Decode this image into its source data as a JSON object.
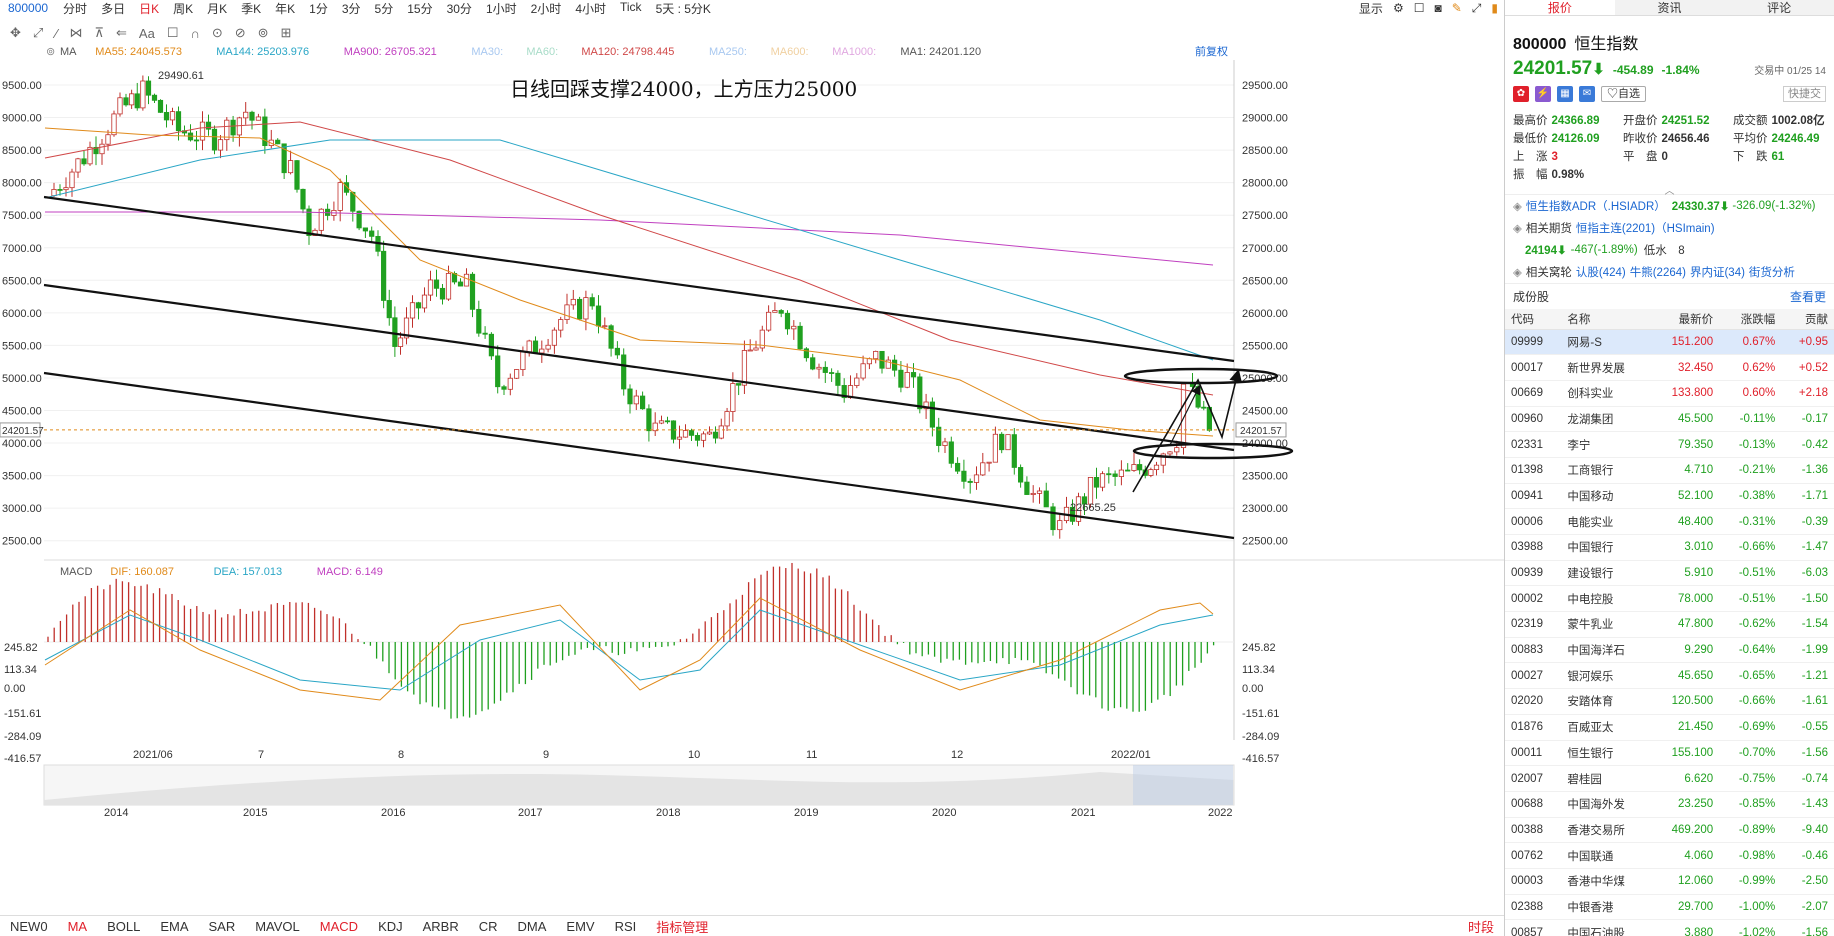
{
  "toolbar": {
    "code": "800000",
    "periods": [
      "分时",
      "多日",
      "日K",
      "周K",
      "月K",
      "季K",
      "年K",
      "1分",
      "3分",
      "5分",
      "15分",
      "30分",
      "1小时",
      "2小时",
      "4小时",
      "Tick",
      "5天 : 5分K"
    ],
    "active_period": "日K",
    "display_label": "显示",
    "tools": [
      "✥",
      "⤢",
      "⁄",
      "⋈",
      "⊼",
      "⇐",
      "Aa",
      "☐",
      "∩",
      "⊙",
      "⊘",
      "⊚",
      "⊞"
    ]
  },
  "chart": {
    "annotation": "日线回踩支撑24000，上方压力25000",
    "high_label": "29490.61",
    "low_label": "22665.25",
    "price_marker": "24201.57",
    "right_label": "前复权",
    "ma_legend": [
      {
        "label": "MA",
        "color": "#555555"
      },
      {
        "label": "MA55: 24045.573",
        "color": "#e08a1a"
      },
      {
        "label": "MA144: 25203.976",
        "color": "#2aa6c6"
      },
      {
        "label": "MA900: 26705.321",
        "color": "#c040c0"
      },
      {
        "label": "MA30:",
        "color": "#a8c8f0"
      },
      {
        "label": "MA60:",
        "color": "#a8dcc8"
      },
      {
        "label": "MA120: 24798.445",
        "color": "#d04848"
      },
      {
        "label": "MA250:",
        "color": "#a8c8f0"
      },
      {
        "label": "MA600:",
        "color": "#f0d0a0"
      },
      {
        "label": "MA1000:",
        "color": "#e0a8e0"
      },
      {
        "label": "MA1: 24201.120",
        "color": "#555555"
      }
    ],
    "y_ticks_left": [
      "9500.00",
      "9000.00",
      "8500.00",
      "8000.00",
      "7500.00",
      "7000.00",
      "6500.00",
      "6000.00",
      "5500.00",
      "5000.00",
      "4500.00",
      "4000.00",
      "3500.00",
      "3000.00",
      "2500.00"
    ],
    "y_ticks_right": [
      "29500.00",
      "29000.00",
      "28500.00",
      "28000.00",
      "27500.00",
      "27000.00",
      "26500.00",
      "26000.00",
      "25500.00",
      "25000.00",
      "24500.00",
      "24000.00",
      "23500.00",
      "23000.00",
      "22500.00"
    ],
    "macd_legend": [
      {
        "label": "MACD",
        "color": "#555555"
      },
      {
        "label": "DIF: 160.087",
        "color": "#e08a1a"
      },
      {
        "label": "DEA: 157.013",
        "color": "#2aa6c6"
      },
      {
        "label": "MACD: 6.149",
        "color": "#c040c0"
      }
    ],
    "macd_ticks": [
      "245.82",
      "113.34",
      "0.00",
      "-151.61",
      "-284.09",
      "-416.57"
    ],
    "x_labels": [
      "2021/06",
      "7",
      "8",
      "9",
      "10",
      "11",
      "12",
      "2022/01"
    ],
    "overview_years": [
      "2014",
      "2015",
      "2016",
      "2017",
      "2018",
      "2019",
      "2020",
      "2021",
      "2022"
    ]
  },
  "chart_data": {
    "type": "candlestick",
    "title": "日线回踩支撑24000，上方压力25000",
    "ylim": [
      22500,
      29700
    ],
    "close_path": [
      [
        "2021/05/12",
        27800
      ],
      [
        "2021/05/20",
        28400
      ],
      [
        "2021/05/28",
        29100
      ],
      [
        "2021/06/02",
        29400
      ],
      [
        "2021/06/10",
        28800
      ],
      [
        "2021/06/18",
        28700
      ],
      [
        "2021/06/25",
        29100
      ],
      [
        "2021/07/05",
        28200
      ],
      [
        "2021/07/09",
        27300
      ],
      [
        "2021/07/16",
        27900
      ],
      [
        "2021/07/23",
        27200
      ],
      [
        "2021/07/28",
        25500
      ],
      [
        "2021/08/05",
        26400
      ],
      [
        "2021/08/13",
        26400
      ],
      [
        "2021/08/20",
        24900
      ],
      [
        "2021/08/27",
        25400
      ],
      [
        "2021/09/03",
        25900
      ],
      [
        "2021/09/10",
        26200
      ],
      [
        "2021/09/17",
        24900
      ],
      [
        "2021/09/24",
        24200
      ],
      [
        "2021/10/06",
        24100
      ],
      [
        "2021/10/15",
        25400
      ],
      [
        "2021/10/22",
        26100
      ],
      [
        "2021/10/29",
        25300
      ],
      [
        "2021/11/05",
        24800
      ],
      [
        "2021/11/12",
        25300
      ],
      [
        "2021/11/19",
        25000
      ],
      [
        "2021/11/26",
        24100
      ],
      [
        "2021/12/03",
        23500
      ],
      [
        "2021/12/10",
        24100
      ],
      [
        "2021/12/17",
        23200
      ],
      [
        "2021/12/23",
        22700
      ],
      [
        "2021/12/31",
        23400
      ],
      [
        "2022/01/07",
        23500
      ],
      [
        "2022/01/12",
        23700
      ],
      [
        "2022/01/18",
        24100
      ],
      [
        "2022/01/20",
        24900
      ],
      [
        "2022/01/25",
        24201.57
      ]
    ],
    "moving_averages": [
      {
        "name": "MA55",
        "last": 24045.573
      },
      {
        "name": "MA144",
        "last": 25203.976
      },
      {
        "name": "MA900",
        "last": 26705.321
      },
      {
        "name": "MA120",
        "last": 24798.445
      }
    ],
    "macd": {
      "DIF": 160.087,
      "DEA": 157.013,
      "MACD": 6.149
    }
  },
  "bottom_bar": {
    "items": [
      "NEW0",
      "MA",
      "BOLL",
      "EMA",
      "SAR",
      "MAVOL",
      "MACD",
      "KDJ",
      "ARBR",
      "CR",
      "DMA",
      "EMV",
      "RSI",
      "指标管理"
    ],
    "red_items": [
      "MA",
      "MACD"
    ],
    "right": "时段"
  },
  "panel": {
    "tabs": [
      "报价",
      "资讯",
      "评论"
    ],
    "code": "800000",
    "name": "恒生指数",
    "price": "24201.57",
    "arrow": "⬇",
    "change": "-454.89",
    "pct": "-1.84%",
    "status": "交易中 01/25 14",
    "self_select": "♡自选",
    "quick_trade": "快捷交",
    "quote": [
      {
        "k": "最高价",
        "v": "24366.89",
        "c": "green"
      },
      {
        "k": "开盘价",
        "v": "24251.52",
        "c": "green"
      },
      {
        "k": "成交额",
        "v": "1002.08亿",
        "c": "black"
      },
      {
        "k": "最低价",
        "v": "24126.09",
        "c": "green"
      },
      {
        "k": "昨收价",
        "v": "24656.46",
        "c": "black"
      },
      {
        "k": "平均价",
        "v": "24246.49",
        "c": "green"
      },
      {
        "k": "上　涨",
        "v": "3",
        "c": "red"
      },
      {
        "k": "平　盘",
        "v": "0",
        "c": "black"
      },
      {
        "k": "下　跌",
        "v": "61",
        "c": "green"
      },
      {
        "k": "振　幅",
        "v": "0.98%",
        "c": "black"
      }
    ],
    "adr": {
      "label": "恒生指数ADR（.HSIADR）",
      "value": "24330.37⬇",
      "change": "-326.09(-1.32%)"
    },
    "futures": {
      "label": "相关期货",
      "link": "恒指主连(2201)（HSImain)",
      "value": "24194⬇",
      "change": "-467(-1.89%)",
      "extra": "低水　8"
    },
    "warrants": {
      "label": "相关窝轮",
      "links": [
        "认股(424)",
        "牛熊(2264)",
        "界内证(34)",
        "街货分析"
      ]
    },
    "constituents_title": "成份股",
    "constituents_more": "查看更",
    "columns": [
      "代码",
      "名称",
      "最新价",
      "涨跌幅",
      "贡献"
    ],
    "rows": [
      {
        "code": "09999",
        "name": "网易-S",
        "price": "151.200",
        "pct": "0.67%",
        "contrib": "+0.95",
        "c": "red"
      },
      {
        "code": "00017",
        "name": "新世界发展",
        "price": "32.450",
        "pct": "0.62%",
        "contrib": "+0.52",
        "c": "red"
      },
      {
        "code": "00669",
        "name": "创科实业",
        "price": "133.800",
        "pct": "0.60%",
        "contrib": "+2.18",
        "c": "red"
      },
      {
        "code": "00960",
        "name": "龙湖集团",
        "price": "45.500",
        "pct": "-0.11%",
        "contrib": "-0.17",
        "c": "green"
      },
      {
        "code": "02331",
        "name": "李宁",
        "price": "79.350",
        "pct": "-0.13%",
        "contrib": "-0.42",
        "c": "green"
      },
      {
        "code": "01398",
        "name": "工商银行",
        "price": "4.710",
        "pct": "-0.21%",
        "contrib": "-1.36",
        "c": "green"
      },
      {
        "code": "00941",
        "name": "中国移动",
        "price": "52.100",
        "pct": "-0.38%",
        "contrib": "-1.71",
        "c": "green"
      },
      {
        "code": "00006",
        "name": "电能实业",
        "price": "48.400",
        "pct": "-0.31%",
        "contrib": "-0.39",
        "c": "green"
      },
      {
        "code": "03988",
        "name": "中国银行",
        "price": "3.010",
        "pct": "-0.66%",
        "contrib": "-1.47",
        "c": "green"
      },
      {
        "code": "00939",
        "name": "建设银行",
        "price": "5.910",
        "pct": "-0.51%",
        "contrib": "-6.03",
        "c": "green"
      },
      {
        "code": "00002",
        "name": "中电控股",
        "price": "78.000",
        "pct": "-0.51%",
        "contrib": "-1.50",
        "c": "green"
      },
      {
        "code": "02319",
        "name": "蒙牛乳业",
        "price": "47.800",
        "pct": "-0.62%",
        "contrib": "-1.54",
        "c": "green"
      },
      {
        "code": "00883",
        "name": "中国海洋石",
        "price": "9.290",
        "pct": "-0.64%",
        "contrib": "-1.99",
        "c": "green"
      },
      {
        "code": "00027",
        "name": "银河娱乐",
        "price": "45.650",
        "pct": "-0.65%",
        "contrib": "-1.21",
        "c": "green"
      },
      {
        "code": "02020",
        "name": "安踏体育",
        "price": "120.500",
        "pct": "-0.66%",
        "contrib": "-1.61",
        "c": "green"
      },
      {
        "code": "01876",
        "name": "百威亚太",
        "price": "21.450",
        "pct": "-0.69%",
        "contrib": "-0.55",
        "c": "green"
      },
      {
        "code": "00011",
        "name": "恒生银行",
        "price": "155.100",
        "pct": "-0.70%",
        "contrib": "-1.56",
        "c": "green"
      },
      {
        "code": "02007",
        "name": "碧桂园",
        "price": "6.620",
        "pct": "-0.75%",
        "contrib": "-0.74",
        "c": "green"
      },
      {
        "code": "00688",
        "name": "中国海外发",
        "price": "23.250",
        "pct": "-0.85%",
        "contrib": "-1.43",
        "c": "green"
      },
      {
        "code": "00388",
        "name": "香港交易所",
        "price": "469.200",
        "pct": "-0.89%",
        "contrib": "-9.40",
        "c": "green"
      },
      {
        "code": "00762",
        "name": "中国联通",
        "price": "4.060",
        "pct": "-0.98%",
        "contrib": "-0.46",
        "c": "green"
      },
      {
        "code": "00003",
        "name": "香港中华煤",
        "price": "12.060",
        "pct": "-0.99%",
        "contrib": "-2.50",
        "c": "green"
      },
      {
        "code": "02388",
        "name": "中银香港",
        "price": "29.700",
        "pct": "-1.00%",
        "contrib": "-2.07",
        "c": "green"
      },
      {
        "code": "00857",
        "name": "中国石油股",
        "price": "3.880",
        "pct": "-1.02%",
        "contrib": "-1.56",
        "c": "green"
      }
    ]
  }
}
